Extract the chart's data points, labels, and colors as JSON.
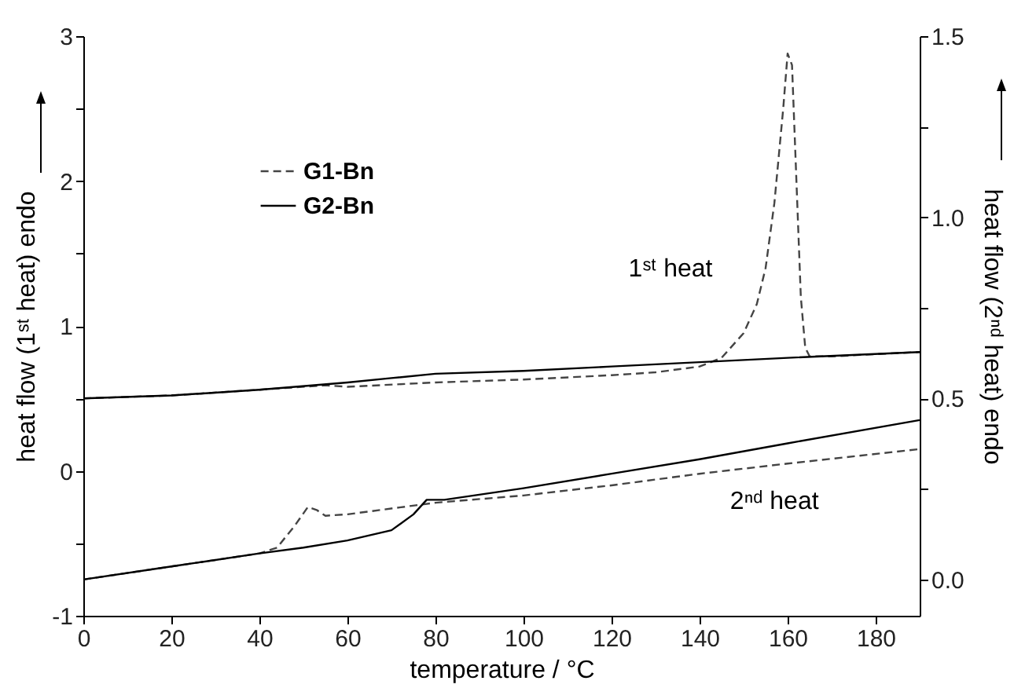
{
  "chart_data": {
    "type": "line",
    "xlabel": "temperature / °C",
    "ylabel": "heat flow (1ˢᵗ heat) endo",
    "y2label": "heat flow (2ⁿᵈ heat) endo",
    "xlim": [
      0,
      190
    ],
    "xticks": [
      0,
      20,
      40,
      60,
      80,
      100,
      120,
      140,
      160,
      180
    ],
    "ylim": [
      -1,
      3
    ],
    "yticks": [
      -1,
      {
        "value": -0.5,
        "label": null
      },
      0,
      {
        "value": 0.5,
        "label": null
      },
      1,
      {
        "value": 1.5,
        "label": null
      },
      2,
      {
        "value": 2.5,
        "label": null
      },
      3
    ],
    "y2lim": [
      -0.1,
      1.5
    ],
    "y2ticks": [
      {
        "value": 0,
        "label": "0.0"
      },
      {
        "value": 0.25,
        "label": null
      },
      {
        "value": 0.5,
        "label": "0.5"
      },
      {
        "value": 0.75,
        "label": null
      },
      {
        "value": 1,
        "label": "1.0"
      },
      {
        "value": 1.25,
        "label": null
      },
      {
        "value": 1.5,
        "label": "1.5"
      }
    ],
    "legend": "top left",
    "marker": "none",
    "grid": false,
    "annotations": [
      "1ˢᵗ heat",
      "2ⁿᵈ heat"
    ],
    "series": [
      {
        "name": "G1-Bn",
        "color": "#444444",
        "line_style": "dashed",
        "x": [
          0,
          20,
          40,
          55,
          60,
          80,
          100,
          120,
          130,
          140,
          145,
          150,
          153,
          155,
          157,
          159,
          160,
          161,
          162,
          163,
          164,
          165,
          170,
          190
        ],
        "values": [
          0.5,
          0.52,
          0.56,
          0.59,
          0.58,
          0.61,
          0.63,
          0.66,
          0.68,
          0.72,
          0.78,
          0.95,
          1.15,
          1.4,
          1.85,
          2.5,
          2.88,
          2.8,
          2.0,
          1.2,
          0.85,
          0.79,
          0.79,
          0.82
        ]
      },
      {
        "name": "G2-Bn",
        "color": "#000000",
        "line_style": "solid",
        "x": [
          0,
          20,
          40,
          60,
          70,
          80,
          100,
          120,
          140,
          160,
          190
        ],
        "values": [
          0.5,
          0.52,
          0.56,
          0.61,
          0.64,
          0.67,
          0.69,
          0.72,
          0.75,
          0.78,
          0.82
        ]
      },
      {
        "color": "#444444",
        "line_style": "dashed",
        "axis": "y2",
        "x": [
          0,
          20,
          40,
          44,
          48,
          51,
          53,
          55,
          60,
          80,
          100,
          120,
          140,
          160,
          190
        ],
        "values": [
          0.0,
          0.036,
          0.072,
          0.088,
          0.148,
          0.2,
          0.192,
          0.176,
          0.18,
          0.212,
          0.232,
          0.26,
          0.292,
          0.32,
          0.36
        ]
      },
      {
        "color": "#000000",
        "line_style": "solid",
        "axis": "y2",
        "x": [
          0,
          20,
          40,
          50,
          60,
          70,
          75,
          78,
          82,
          100,
          120,
          140,
          160,
          190
        ],
        "values": [
          0.0,
          0.036,
          0.072,
          0.088,
          0.108,
          0.136,
          0.18,
          0.22,
          0.22,
          0.252,
          0.292,
          0.332,
          0.376,
          0.44
        ]
      }
    ]
  }
}
